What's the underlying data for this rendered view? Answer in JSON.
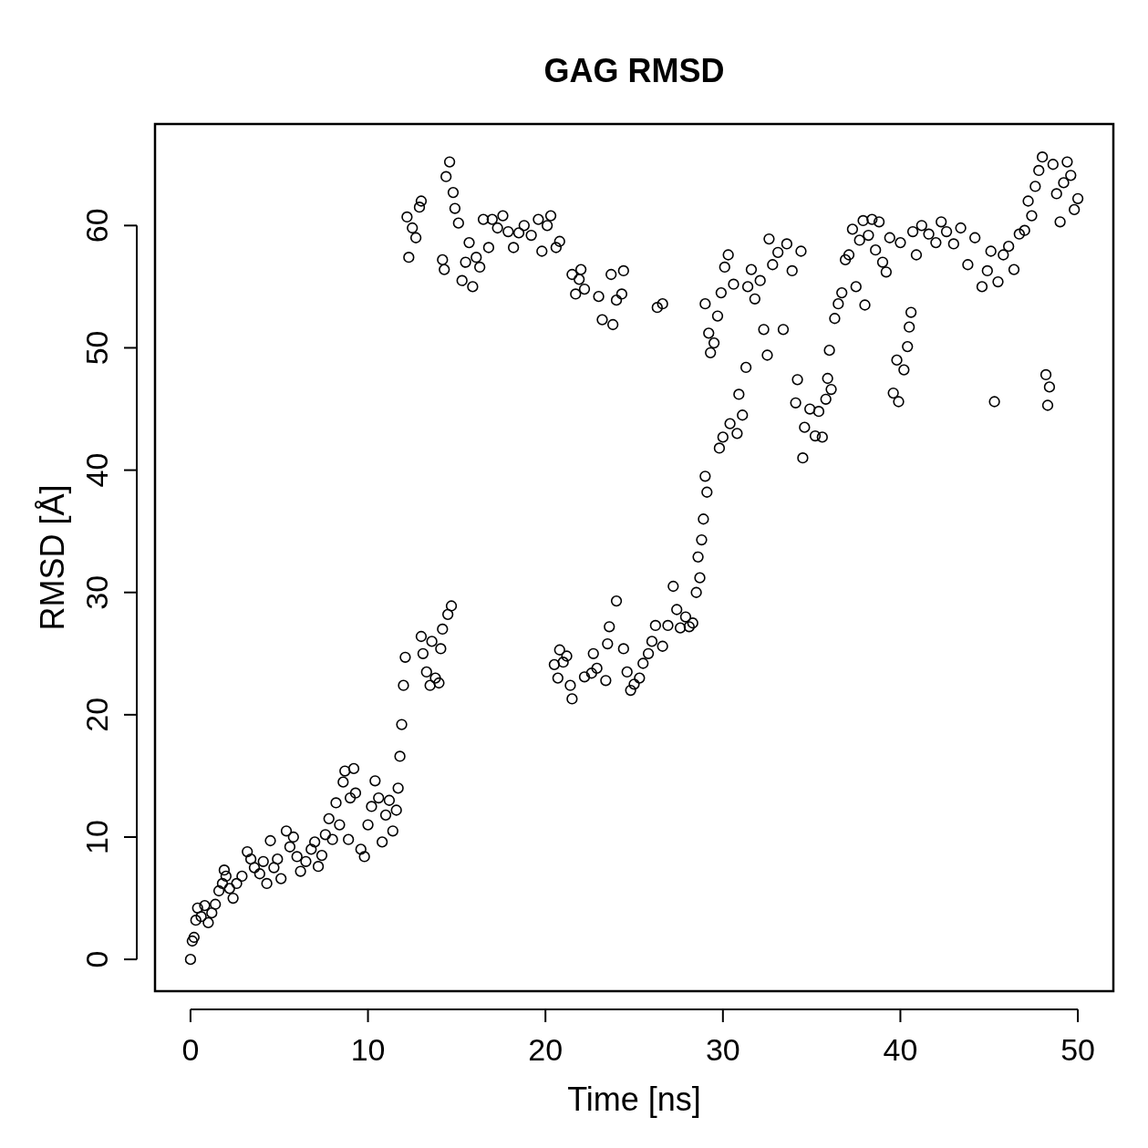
{
  "chart_data": {
    "type": "scatter",
    "title": "GAG RMSD",
    "xlabel": "Time [ns]",
    "ylabel": "RMSD [Å]",
    "xlim": [
      -2,
      52
    ],
    "ylim": [
      -2.6,
      68.3
    ],
    "xticks": [
      0,
      10,
      20,
      30,
      40,
      50
    ],
    "yticks": [
      0,
      10,
      20,
      30,
      40,
      50,
      60
    ],
    "marker": "circle",
    "grid": false,
    "series": [
      {
        "color": "#000000",
        "x": [
          0,
          0.1,
          0.2,
          0.3,
          0.4,
          0.6,
          0.8,
          1.0,
          1.2,
          1.4,
          1.6,
          1.8,
          1.9,
          2.0,
          2.2,
          2.4,
          2.6,
          2.9,
          3.2,
          3.4,
          3.6,
          3.9,
          4.1,
          4.3,
          4.5,
          4.7,
          4.9,
          5.1,
          5.4,
          5.6,
          5.8,
          6.0,
          6.2,
          6.5,
          6.8,
          7.0,
          7.2,
          7.4,
          7.6,
          7.8,
          8.0,
          8.2,
          8.4,
          8.6,
          8.7,
          8.9,
          9.0,
          9.2,
          9.3,
          9.6,
          9.8,
          10.0,
          10.2,
          10.4,
          10.6,
          10.8,
          11.0,
          11.2,
          11.4,
          11.6,
          11.7,
          11.8,
          11.9,
          12.0,
          12.1,
          12.2,
          12.3,
          12.5,
          12.7,
          12.9,
          13.0,
          13.0,
          13.1,
          13.3,
          13.5,
          13.6,
          13.8,
          14.0,
          14.1,
          14.2,
          14.2,
          14.3,
          14.4,
          14.6,
          14.5,
          14.7,
          14.8,
          14.9,
          15.1,
          15.3,
          15.5,
          15.7,
          15.9,
          16.1,
          16.3,
          16.5,
          16.8,
          17.0,
          17.3,
          17.6,
          17.9,
          18.2,
          18.5,
          18.8,
          19.2,
          19.6,
          19.8,
          20.1,
          20.3,
          20.6,
          20.8,
          20.5,
          20.7,
          20.8,
          21.0,
          21.2,
          21.4,
          21.5,
          21.5,
          21.7,
          21.9,
          22.0,
          22.2,
          22.2,
          22.6,
          22.7,
          22.9,
          23.0,
          23.2,
          23.4,
          23.5,
          23.6,
          23.7,
          23.8,
          24.0,
          24.0,
          24.3,
          24.4,
          24.4,
          24.6,
          24.8,
          25.0,
          25.3,
          25.5,
          25.8,
          26.0,
          26.2,
          26.3,
          26.6,
          26.6,
          26.9,
          27.2,
          27.4,
          27.6,
          27.9,
          28.1,
          28.3,
          28.5,
          28.6,
          28.7,
          28.8,
          28.9,
          29.0,
          29.1,
          29.0,
          29.2,
          29.3,
          29.5,
          29.7,
          29.8,
          30.0,
          29.9,
          30.1,
          30.3,
          30.4,
          30.6,
          30.8,
          30.9,
          31.1,
          31.3,
          31.4,
          31.6,
          31.8,
          32.1,
          32.3,
          32.5,
          32.6,
          32.8,
          33.1,
          33.4,
          33.6,
          33.9,
          34.1,
          34.2,
          34.4,
          34.5,
          34.6,
          34.9,
          35.2,
          35.4,
          35.6,
          35.8,
          35.9,
          36.0,
          36.1,
          36.3,
          36.5,
          36.7,
          36.9,
          37.1,
          37.3,
          37.5,
          37.7,
          37.9,
          38.0,
          38.2,
          38.4,
          38.6,
          38.8,
          39.0,
          39.2,
          39.4,
          39.6,
          39.8,
          39.9,
          40.0,
          40.2,
          40.4,
          40.5,
          40.6,
          40.7,
          40.9,
          41.2,
          41.6,
          42.0,
          42.3,
          42.6,
          43.0,
          43.4,
          43.8,
          44.2,
          44.6,
          44.9,
          45.1,
          45.3,
          45.5,
          45.8,
          46.1,
          46.4,
          46.7,
          47.0,
          47.2,
          47.4,
          47.6,
          47.8,
          48.0,
          48.2,
          48.3,
          48.4,
          48.6,
          48.8,
          49.0,
          49.2,
          49.4,
          49.6,
          49.8,
          50.0
        ],
        "values": [
          0,
          1.5,
          1.8,
          3.2,
          4.2,
          3.5,
          4.4,
          3.0,
          3.8,
          4.5,
          5.6,
          6.2,
          7.3,
          6.8,
          5.8,
          5.0,
          6.2,
          6.8,
          8.8,
          8.2,
          7.5,
          7.0,
          8.0,
          6.2,
          9.7,
          7.5,
          8.2,
          6.6,
          10.5,
          9.2,
          10.0,
          8.4,
          7.2,
          8.0,
          9.0,
          9.6,
          7.6,
          8.5,
          10.2,
          11.5,
          9.8,
          12.8,
          11.0,
          14.5,
          15.4,
          9.8,
          13.2,
          15.6,
          13.6,
          9.0,
          8.4,
          11.0,
          12.5,
          14.6,
          13.2,
          9.6,
          11.8,
          13.0,
          10.5,
          12.2,
          14.0,
          16.6,
          19.2,
          22.4,
          24.7,
          60.7,
          57.4,
          59.8,
          59.0,
          61.5,
          62.0,
          26.4,
          25.0,
          23.5,
          22.4,
          26.0,
          23.0,
          22.6,
          25.4,
          27.0,
          57.2,
          56.4,
          64.0,
          65.2,
          28.2,
          28.9,
          62.7,
          61.4,
          60.2,
          55.5,
          57.0,
          58.6,
          55.0,
          57.4,
          56.6,
          60.5,
          58.2,
          60.5,
          59.8,
          60.8,
          59.5,
          58.2,
          59.4,
          60.0,
          59.2,
          60.5,
          57.9,
          60.0,
          60.8,
          58.2,
          58.7,
          24.1,
          23.0,
          25.3,
          24.3,
          24.8,
          22.4,
          21.3,
          56.0,
          54.4,
          55.6,
          56.4,
          54.8,
          23.1,
          23.4,
          25.0,
          23.8,
          54.2,
          52.3,
          22.8,
          25.8,
          27.2,
          56.0,
          51.9,
          53.9,
          29.3,
          54.4,
          56.3,
          25.4,
          23.5,
          22.0,
          22.5,
          23.0,
          24.2,
          25.0,
          26.0,
          27.3,
          53.3,
          53.6,
          25.6,
          27.3,
          30.5,
          28.6,
          27.1,
          28.0,
          27.2,
          27.5,
          30.0,
          32.9,
          31.2,
          34.3,
          36.0,
          39.5,
          38.2,
          53.6,
          51.2,
          49.6,
          50.4,
          52.6,
          41.8,
          42.7,
          54.5,
          56.6,
          57.6,
          43.8,
          55.2,
          43.0,
          46.2,
          44.5,
          48.4,
          55.0,
          56.4,
          54.0,
          55.5,
          51.5,
          49.4,
          58.9,
          56.8,
          57.8,
          51.5,
          58.5,
          56.3,
          45.5,
          47.4,
          57.9,
          41.0,
          43.5,
          45.0,
          42.8,
          44.8,
          42.7,
          45.8,
          47.5,
          49.8,
          46.6,
          52.4,
          53.6,
          54.5,
          57.2,
          57.6,
          59.7,
          55.0,
          58.8,
          60.4,
          53.5,
          59.2,
          60.5,
          58.0,
          60.3,
          57.0,
          56.2,
          59.0,
          46.3,
          49.0,
          45.6,
          58.6,
          48.2,
          50.1,
          51.7,
          52.9,
          59.5,
          57.6,
          60.0,
          59.3,
          58.6,
          60.3,
          59.5,
          58.5,
          59.8,
          56.8,
          59.0,
          55.0,
          56.3,
          57.9,
          45.6,
          55.4,
          57.6,
          58.3,
          56.4,
          59.3,
          59.6,
          62.0,
          60.8,
          63.2,
          64.5,
          65.6,
          47.8,
          45.3,
          46.8,
          65.0,
          62.6,
          60.3,
          63.5,
          65.2,
          64.1,
          61.3,
          62.2
        ]
      }
    ]
  }
}
